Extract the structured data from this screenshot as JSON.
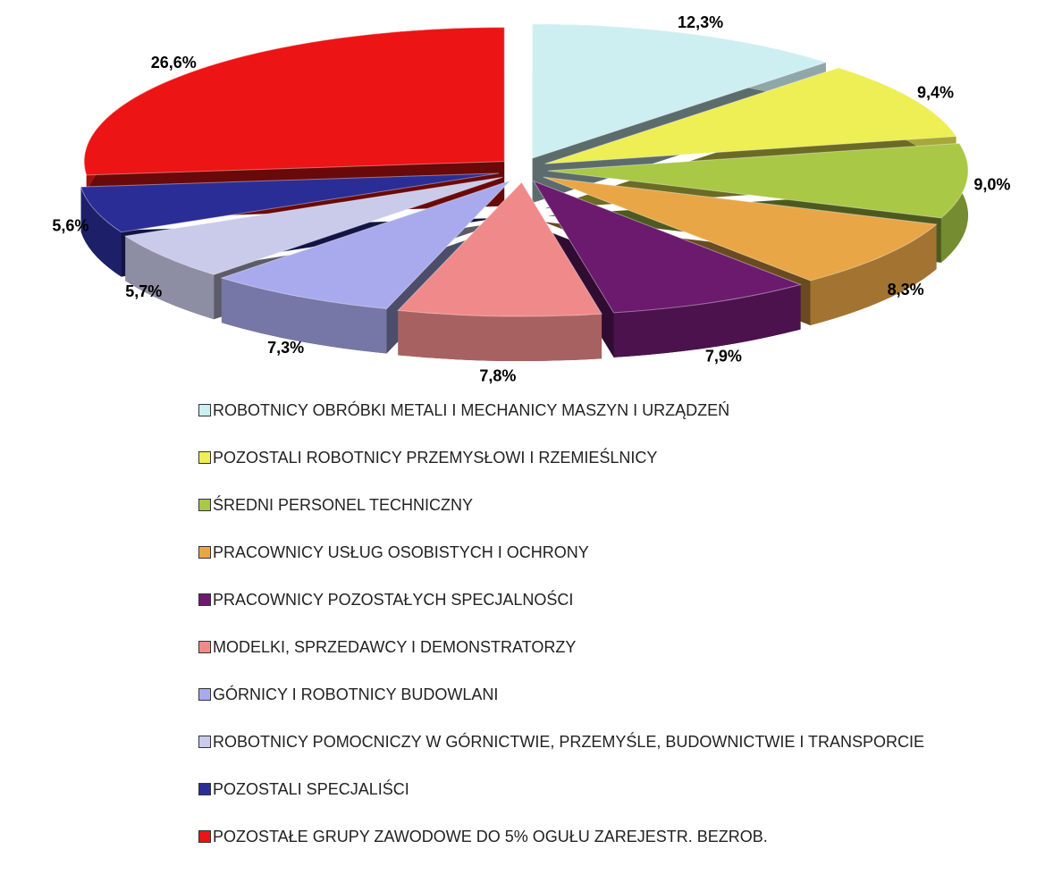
{
  "chart_data": {
    "type": "pie",
    "categories": [
      "ROBOTNICY OBRÓBKI METALI I MECHANICY MASZYN I URZĄDZEŃ",
      "POZOSTALI ROBOTNICY PRZEMYSŁOWI I RZEMIEŚLNICY",
      "ŚREDNI PERSONEL TECHNICZNY",
      "PRACOWNICY USŁUG OSOBISTYCH I OCHRONY",
      "PRACOWNICY POZOSTAŁYCH SPECJALNOŚCI",
      "MODELKI, SPRZEDAWCY I DEMONSTRATORZY",
      "GÓRNICY I ROBOTNICY BUDOWLANI",
      "ROBOTNICY POMOCNICZY W GÓRNICTWIE, PRZEMYŚLE, BUDOWNICTWIE I TRANSPORCIE",
      "POZOSTALI SPECJALIŚCI",
      "POZOSTAŁE GRUPY ZAWODOWE DO 5% OGUŁU ZAREJESTR. BEZROB."
    ],
    "values": [
      12.3,
      9.4,
      9.0,
      8.3,
      7.9,
      7.8,
      7.3,
      5.7,
      5.6,
      26.6
    ],
    "value_labels": [
      "12,3%",
      "9,4%",
      "9,0%",
      "8,3%",
      "7,9%",
      "7,8%",
      "7,3%",
      "5,7%",
      "5,6%",
      "26,6%"
    ],
    "colors": [
      "#cdeff1",
      "#eeee55",
      "#a9c845",
      "#e9a646",
      "#6b1a6e",
      "#f08a8a",
      "#a9aaee",
      "#cacbea",
      "#2b2d96",
      "#ec1414"
    ],
    "legend": "bottom"
  }
}
